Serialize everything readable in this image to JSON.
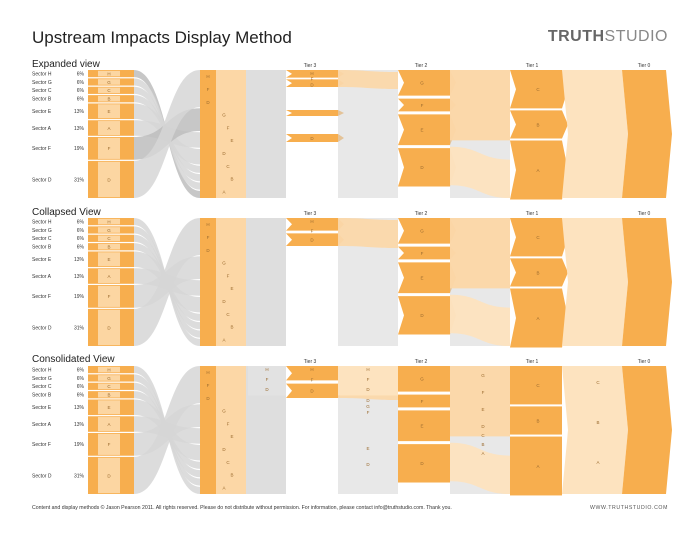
{
  "title": "Upstream Impacts Display Method",
  "brand": {
    "bold": "TRUTH",
    "light": "STUDIO"
  },
  "sections": [
    {
      "title": "Expanded view",
      "mode": "expanded"
    },
    {
      "title": "Collapsed View",
      "mode": "collapsed"
    },
    {
      "title": "Consolidated View",
      "mode": "consolidated"
    }
  ],
  "tiers": [
    "Tier 3",
    "Tier 2",
    "Tier 1",
    "Tier 0"
  ],
  "sectors": [
    {
      "name": "Sector H",
      "pct": "6%",
      "code": "H",
      "share": 6
    },
    {
      "name": "Sector G",
      "pct": "6%",
      "code": "G",
      "share": 6
    },
    {
      "name": "Sector C",
      "pct": "6%",
      "code": "C",
      "share": 6
    },
    {
      "name": "Sector B",
      "pct": "6%",
      "code": "B",
      "share": 6
    },
    {
      "name": "Sector E",
      "pct": "13%",
      "code": "E",
      "share": 13
    },
    {
      "name": "Sector A",
      "pct": "13%",
      "code": "A",
      "share": 13
    },
    {
      "name": "Sector F",
      "pct": "19%",
      "code": "F",
      "share": 19
    },
    {
      "name": "Sector D",
      "pct": "31%",
      "code": "D",
      "share": 31
    }
  ],
  "nodes": {
    "t3": [
      "H",
      "F",
      "D"
    ],
    "t2": [
      "G",
      "F",
      "E",
      "D"
    ],
    "t1": [
      "C",
      "B",
      "A"
    ],
    "col3": [
      "H",
      "F",
      "D",
      "G",
      "F",
      "E",
      "D",
      "C",
      "B",
      "A"
    ]
  },
  "colors": {
    "orange": "#F7AE4E",
    "light": "#FCD7A6",
    "lighter": "#FDE3BF",
    "gray": "#D6D6D6",
    "text": "#9a6a2e"
  },
  "footer": {
    "text": "Content and display methods © Jason Pearson 2011.  All rights reserved.  Please do not distribute without permission.  For information, please contact info@truthstudio.com.  Thank you.",
    "url": "WWW.TRUTHSTUDIO.COM"
  }
}
